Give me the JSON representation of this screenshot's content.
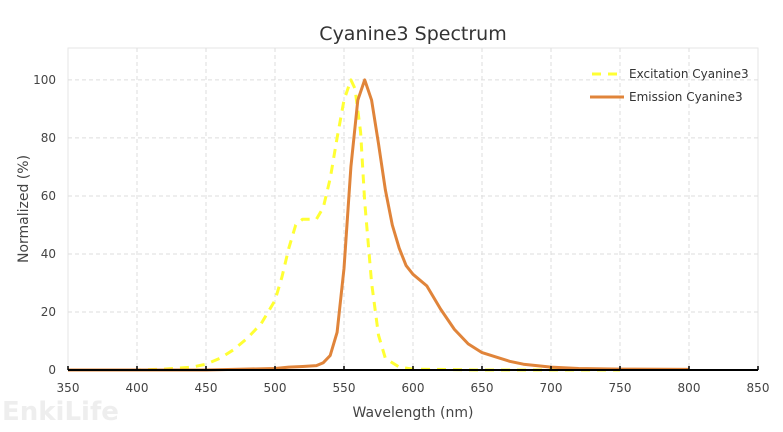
{
  "chart_data": {
    "type": "line",
    "title": "Cyanine3  Spectrum",
    "xlabel": "Wavelength (nm)",
    "ylabel": "Normalized (%)",
    "xlim": [
      350,
      850
    ],
    "ylim": [
      0,
      111
    ],
    "xticks": [
      350,
      400,
      450,
      500,
      550,
      600,
      650,
      700,
      750,
      800,
      850
    ],
    "yticks": [
      0,
      20,
      40,
      60,
      80,
      100
    ],
    "grid": true,
    "legend_position": "top-right",
    "series": [
      {
        "name": "Excitation Cyanine3",
        "color": "#ffff33",
        "style": "dashed",
        "x": [
          350,
          400,
          420,
          440,
          450,
          460,
          470,
          480,
          490,
          500,
          505,
          510,
          515,
          520,
          525,
          530,
          535,
          540,
          545,
          550,
          555,
          558,
          562,
          565,
          570,
          575,
          580,
          590,
          600,
          650,
          700,
          750
        ],
        "y": [
          0,
          0,
          0.3,
          1,
          2,
          4,
          7,
          11,
          16,
          24,
          32,
          42,
          50,
          52,
          52,
          52,
          56,
          66,
          80,
          93,
          100,
          97,
          82,
          58,
          30,
          12,
          4,
          1,
          0.3,
          0,
          0,
          0
        ]
      },
      {
        "name": "Emission Cyanine3",
        "color": "#e0843a",
        "style": "solid",
        "x": [
          350,
          450,
          500,
          510,
          520,
          530,
          535,
          540,
          545,
          550,
          555,
          560,
          565,
          570,
          575,
          580,
          585,
          590,
          595,
          600,
          610,
          620,
          630,
          640,
          650,
          660,
          670,
          680,
          700,
          720,
          750,
          800
        ],
        "y": [
          0,
          0,
          0.5,
          1,
          1.2,
          1.5,
          2.5,
          5,
          13,
          35,
          70,
          93,
          100,
          93,
          78,
          62,
          50,
          42,
          36,
          33,
          29,
          21,
          14,
          9,
          6,
          4.5,
          3,
          2,
          1,
          0.5,
          0.3,
          0.2
        ]
      }
    ]
  },
  "watermark": "EnkiLife"
}
